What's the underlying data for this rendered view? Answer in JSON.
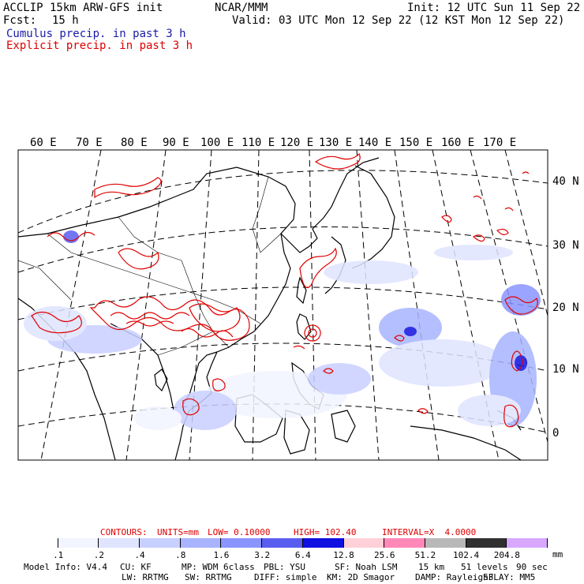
{
  "header": {
    "title_left": "ACCLIP 15km ARW-GFS init",
    "fcst_label": "Fcst:",
    "fcst_value": "15 h",
    "center": "NCAR/MMM",
    "init": "Init: 12 UTC Sun 11 Sep 22",
    "valid": "Valid: 03 UTC Mon 12 Sep 22 (12 KST Mon 12 Sep 22)",
    "cumulus_label": "Cumulus precip. in past 3 h",
    "explicit_label": "Explicit precip. in past 3 h"
  },
  "map": {
    "lon_labels": [
      "60 E",
      "70 E",
      "80 E",
      "90 E",
      "100 E",
      "110 E",
      "120 E",
      "130 E",
      "140 E",
      "150 E",
      "160 E",
      "170 E"
    ],
    "lat_labels": [
      "40 N",
      "30 N",
      "20 N",
      "10 N",
      "0"
    ]
  },
  "contours_line": {
    "contours": "CONTOURS:",
    "units": "UNITS=mm",
    "low": "LOW= 0.10000",
    "high": "HIGH= 102.40",
    "interval": "INTERVAL=X  4.0000"
  },
  "colorbar": {
    "labels": [
      ".1",
      ".2",
      ".4",
      ".8",
      "1.6",
      "3.2",
      "6.4",
      "12.8",
      "25.6",
      "51.2",
      "102.4",
      "204.8"
    ],
    "unit": "mm",
    "colors": [
      "#ffffff",
      "#f2f4ff",
      "#dfe4ff",
      "#c8d0ff",
      "#a8b4ff",
      "#8a95ff",
      "#5a5ef0",
      "#1010e0",
      "#ffd0d8",
      "#ff88b8",
      "#b8b8b8",
      "#303030",
      "#d8a8ff"
    ]
  },
  "footer": {
    "line1": [
      "Model Info: V4.4",
      "CU: KF",
      "MP: WDM 6class",
      "PBL: YSU",
      "SF: Noah LSM",
      "15 km",
      "51 levels",
      "90 sec"
    ],
    "line2": [
      "LW: RRTMG",
      "SW: RRTMG",
      "DIFF: simple",
      "KM: 2D Smagor",
      "DAMP: Rayleigh3",
      "SFLAY: MM5"
    ]
  },
  "colors": {
    "title_blue": "#1a1aa8",
    "title_red": "#dd0000",
    "explicit_red": "#e00000",
    "cumulus_blue": "#3a46e6"
  }
}
